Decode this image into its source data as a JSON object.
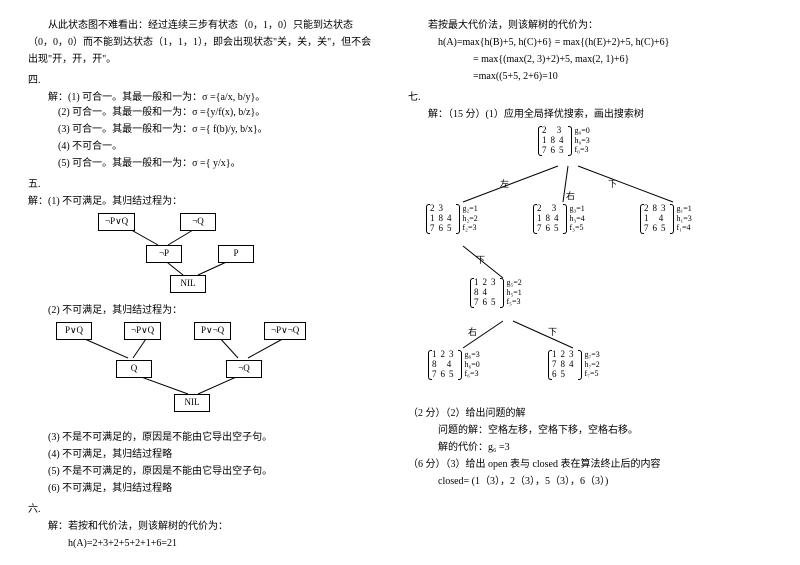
{
  "left": {
    "p1": "从此状态图不难看出：经过连续三步有状态（0，1，0）只能到达状态",
    "p2": "（0，0，0）而不能到达状态（1，1，1），即会出现状态\"关，关，关\"，但不会",
    "p3": "出现\"开，开，开\"。",
    "four": "四.",
    "sol": "解：",
    "l1": "(1)  可合一。其最一般和一为：σ ={a/x, b/y}。",
    "l2": "(2)  可合一。其最一般和一为：σ ={y/f(x), b/z}。",
    "l3": "(3)  可合一。其最一般和一为：σ ={ f(b)/y, b/x}。",
    "l4": "(4)  不可合一。",
    "l5": "(5)  可合一。其最一般和一为：σ ={ y/x}。",
    "five": "五.",
    "five1": "(1)  不可满足。其归结过程为：",
    "t1": {
      "a": "¬P∨Q",
      "b": "¬Q",
      "c": "¬P",
      "d": "P",
      "e": "NIL"
    },
    "five2": "(2)  不可满足，其归结过程为：",
    "t2": {
      "a": "P∨Q",
      "b": "¬P∨Q",
      "c": "P∨¬Q",
      "d": "¬P∨¬Q",
      "e": "Q",
      "f": "¬Q",
      "g": "NIL"
    },
    "five3": "(3)  不是不可满足的，原因是不能由它导出空子句。",
    "five4": "(4)  不可满足，其归结过程略",
    "five5": "(5)  不是不可满足的，原因是不能由它导出空子句。",
    "five6": "(6)  不可满足，其归结过程略",
    "six": "六.",
    "six1": "解：若按和代价法，则该解树的代价为：",
    "six2": "h(A)=2+3+2+5+2+1+6=21"
  },
  "right": {
    "r1": "若按最大代价法，则该解树的代价为：",
    "r2": "h(A)=max{h(B)+5, h(C)+6} = max{(h(E)+2)+5, h(C)+6}",
    "r3": "= max{(max(2, 3)+2)+5, max(2, 1)+6}",
    "r4": "=max((5+5, 2+6)=10",
    "seven": "七.",
    "seven1": "（15 分）(1）应用全局择优搜索，画出搜索树",
    "tree": {
      "root": {
        "m": [
          [
            "2",
            "",
            "3"
          ],
          [
            "1",
            "8",
            "4"
          ],
          [
            "7",
            "6",
            "5"
          ]
        ],
        "g": "g₀=0",
        "h": "h₀=3",
        "f": "f₀=3"
      },
      "n1": {
        "m": [
          [
            "",
            "2",
            "3"
          ],
          [
            "1",
            "8",
            "4"
          ],
          [
            "7",
            "6",
            "5"
          ]
        ],
        "g": "g₂=1",
        "h": "h₂=2",
        "f": "f₂=3"
      },
      "n2": {
        "m": [
          [
            "2",
            "",
            "3"
          ],
          [
            "1",
            "8",
            "4"
          ],
          [
            "7",
            "6",
            "5"
          ]
        ],
        "g": "g₃=1",
        "h": "h₃=4",
        "f": "f₃=5"
      },
      "n3": {
        "m": [
          [
            "2",
            "8",
            "3"
          ],
          [
            "1",
            "",
            "4"
          ],
          [
            "7",
            "6",
            "5"
          ]
        ],
        "g": "g₁=1",
        "h": "h₁=3",
        "f": "f₁=4"
      },
      "n4": {
        "m": [
          [
            "1",
            "2",
            "3"
          ],
          [
            "",
            "8",
            "4"
          ],
          [
            "7",
            "6",
            "5"
          ]
        ],
        "g": "g₅=2",
        "h": "h₅=1",
        "f": "f₅=3"
      },
      "n5": {
        "m": [
          [
            "1",
            "2",
            "3"
          ],
          [
            "8",
            "",
            "4"
          ],
          [
            "7",
            "6",
            "5"
          ]
        ],
        "g": "g₆=3",
        "h": "h₆=0",
        "f": "f₆=3"
      },
      "n6": {
        "m": [
          [
            "1",
            "2",
            "3"
          ],
          [
            "7",
            "8",
            "4"
          ],
          [
            "",
            "6",
            "5"
          ]
        ],
        "g": "g₇=3",
        "h": "h₇=2",
        "f": "f₇=5"
      },
      "left": "左",
      "right": "右",
      "down": "下"
    },
    "p2a": "（2 分）（2）给出问题的解",
    "p2b": "问题的解：空格左移，空格下移，空格右移。",
    "p2c": "解的代价：g₆ =3",
    "p3a": "（6 分）（3）给出 open 表与 closed 表在算法终止后的内容",
    "p3b": "closed= (1（3），2（3），5（3），6（3）)"
  }
}
